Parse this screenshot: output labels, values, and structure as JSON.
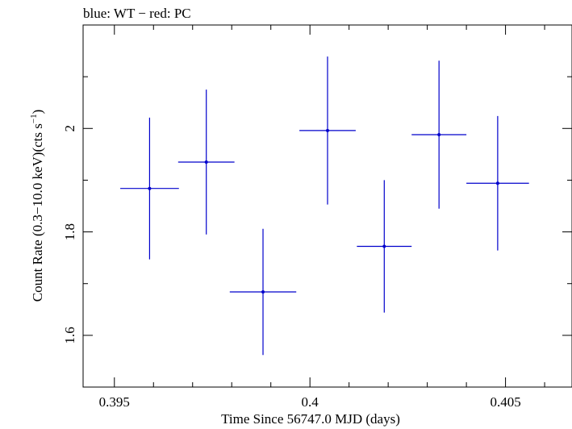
{
  "chart_data": {
    "type": "scatter",
    "title": "blue: WT − red: PC",
    "xlabel": "Time Since 56747.0 MJD (days)",
    "ylabel": {
      "main": "Count Rate (0.3−10.0 keV)(cts s",
      "sup": "−1",
      "close": ")"
    },
    "xlim": [
      0.3942,
      0.4067
    ],
    "ylim": [
      1.5,
      2.2
    ],
    "x_ticks": [
      {
        "value": 0.395,
        "label": "0.395"
      },
      {
        "value": 0.4,
        "label": "0.4"
      },
      {
        "value": 0.405,
        "label": "0.405"
      }
    ],
    "y_ticks": [
      {
        "value": 1.6,
        "label": "1.6"
      },
      {
        "value": 1.8,
        "label": "1.8"
      },
      {
        "value": 2.0,
        "label": "2"
      }
    ],
    "x_minor_step": 0.001,
    "y_minor_step": 0.1,
    "series": [
      {
        "color": "#0000cc",
        "points": [
          {
            "x": 0.3959,
            "xerr": 0.00075,
            "y": 1.884,
            "yerr": 0.137
          },
          {
            "x": 0.39735,
            "xerr": 0.00072,
            "y": 1.935,
            "yerr": 0.14
          },
          {
            "x": 0.3988,
            "xerr": 0.00085,
            "y": 1.684,
            "yerr": 0.122
          },
          {
            "x": 0.40045,
            "xerr": 0.00072,
            "y": 1.996,
            "yerr": 0.143
          },
          {
            "x": 0.4019,
            "xerr": 0.0007,
            "y": 1.772,
            "yerr": 0.128
          },
          {
            "x": 0.4033,
            "xerr": 0.0007,
            "y": 1.988,
            "yerr": 0.143
          },
          {
            "x": 0.4048,
            "xerr": 0.0008,
            "y": 1.894,
            "yerr": 0.13
          }
        ]
      }
    ]
  }
}
